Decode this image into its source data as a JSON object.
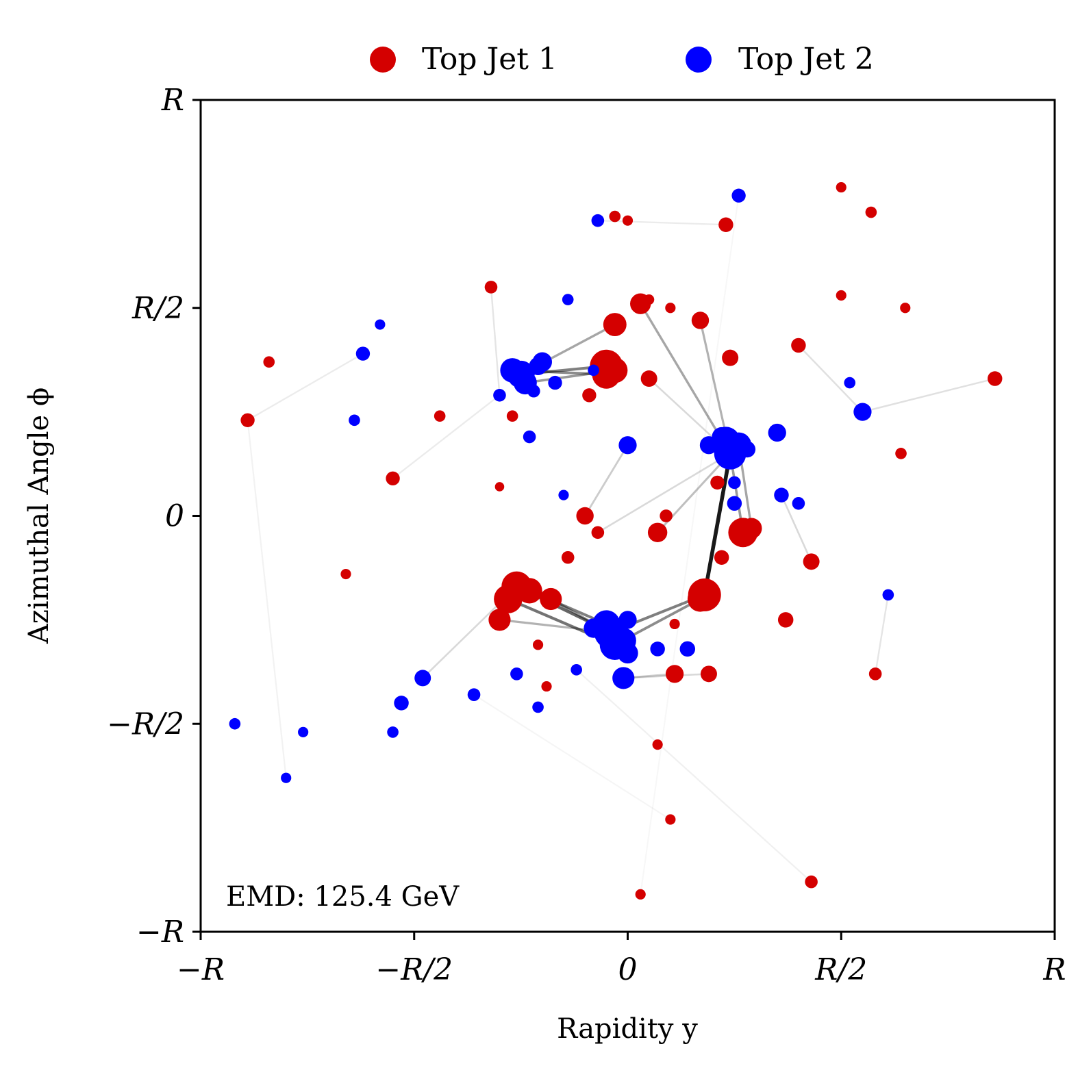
{
  "chart_data": {
    "type": "scatter",
    "xlabel": "Rapidity y",
    "ylabel": "Azimuthal Angle ϕ",
    "x_ticks": [
      "−R",
      "−R/2",
      "0",
      "R/2",
      "R"
    ],
    "y_ticks": [
      "−R",
      "−R/2",
      "0",
      "R/2",
      "R"
    ],
    "xlim": [
      -1,
      1
    ],
    "ylim": [
      -1,
      1
    ],
    "legend_position": "top-center",
    "annotation": "EMD: 125.4 GeV",
    "series": [
      {
        "name": "Top Jet 1",
        "color": "#d40000",
        "points": [
          [
            -0.05,
            0.36,
            1.0
          ],
          [
            -0.05,
            0.34,
            0.75
          ],
          [
            -0.03,
            0.35,
            0.6
          ],
          [
            0.18,
            -0.19,
            1.0
          ],
          [
            0.17,
            -0.2,
            0.6
          ],
          [
            0.27,
            -0.04,
            0.8
          ],
          [
            0.29,
            -0.03,
            0.4
          ],
          [
            -0.26,
            -0.17,
            0.85
          ],
          [
            -0.28,
            -0.2,
            0.75
          ],
          [
            -0.23,
            -0.18,
            0.6
          ],
          [
            -0.18,
            -0.2,
            0.45
          ],
          [
            -0.3,
            -0.25,
            0.45
          ],
          [
            -0.03,
            0.46,
            0.5
          ],
          [
            0.03,
            0.51,
            0.4
          ],
          [
            0.17,
            0.47,
            0.28
          ],
          [
            0.05,
            0.33,
            0.25
          ],
          [
            0.07,
            -0.04,
            0.35
          ],
          [
            0.11,
            -0.38,
            0.3
          ],
          [
            0.19,
            -0.38,
            0.25
          ],
          [
            0.24,
            0.38,
            0.25
          ],
          [
            0.21,
            0.08,
            0.18
          ],
          [
            0.22,
            -0.1,
            0.2
          ],
          [
            -0.09,
            0.29,
            0.18
          ],
          [
            -0.1,
            0.0,
            0.28
          ],
          [
            -0.07,
            -0.04,
            0.15
          ],
          [
            -0.14,
            -0.1,
            0.15
          ],
          [
            0.09,
            0.0,
            0.15
          ],
          [
            0.43,
            -0.11,
            0.25
          ],
          [
            0.4,
            0.41,
            0.2
          ],
          [
            0.23,
            0.7,
            0.2
          ],
          [
            0.86,
            0.33,
            0.2
          ],
          [
            -0.32,
            0.55,
            0.15
          ],
          [
            -0.27,
            0.24,
            0.12
          ],
          [
            -0.44,
            0.24,
            0.12
          ],
          [
            -0.55,
            0.09,
            0.18
          ],
          [
            -0.89,
            0.23,
            0.18
          ],
          [
            -0.84,
            0.37,
            0.12
          ],
          [
            0.37,
            -0.25,
            0.22
          ],
          [
            0.58,
            -0.38,
            0.15
          ],
          [
            0.57,
            0.73,
            0.12
          ],
          [
            0.64,
            0.15,
            0.12
          ],
          [
            0.05,
            0.52,
            0.1
          ],
          [
            -0.03,
            0.72,
            0.12
          ],
          [
            0.0,
            0.71,
            0.1
          ],
          [
            0.11,
            -0.26,
            0.1
          ],
          [
            0.1,
            -0.73,
            0.1
          ],
          [
            0.03,
            -0.91,
            0.1
          ],
          [
            0.43,
            -0.88,
            0.15
          ],
          [
            0.5,
            0.53,
            0.1
          ],
          [
            0.65,
            0.5,
            0.1
          ],
          [
            0.5,
            0.79,
            0.1
          ],
          [
            -0.3,
            0.07,
            0.08
          ],
          [
            -0.66,
            -0.14,
            0.1
          ],
          [
            0.1,
            0.5,
            0.1
          ],
          [
            0.07,
            -0.55,
            0.1
          ],
          [
            -0.21,
            -0.31,
            0.1
          ],
          [
            -0.19,
            -0.41,
            0.1
          ]
        ]
      },
      {
        "name": "Top Jet 2",
        "color": "#0000ff",
        "points": [
          [
            -0.25,
            0.34,
            0.7
          ],
          [
            -0.27,
            0.35,
            0.55
          ],
          [
            -0.24,
            0.32,
            0.5
          ],
          [
            -0.21,
            0.36,
            0.3
          ],
          [
            -0.17,
            0.32,
            0.18
          ],
          [
            -0.22,
            0.3,
            0.15
          ],
          [
            0.24,
            0.15,
            0.95
          ],
          [
            0.23,
            0.18,
            0.75
          ],
          [
            0.26,
            0.17,
            0.6
          ],
          [
            0.19,
            0.17,
            0.3
          ],
          [
            0.22,
            0.19,
            0.35
          ],
          [
            0.28,
            0.16,
            0.25
          ],
          [
            -0.04,
            -0.28,
            1.0
          ],
          [
            -0.03,
            -0.31,
            0.85
          ],
          [
            -0.05,
            -0.26,
            0.7
          ],
          [
            -0.01,
            -0.3,
            0.6
          ],
          [
            0.0,
            -0.33,
            0.4
          ],
          [
            -0.08,
            -0.27,
            0.35
          ],
          [
            0.0,
            -0.25,
            0.3
          ],
          [
            -0.01,
            -0.39,
            0.45
          ],
          [
            0.0,
            0.17,
            0.3
          ],
          [
            0.35,
            0.2,
            0.3
          ],
          [
            0.25,
            0.03,
            0.2
          ],
          [
            0.25,
            0.08,
            0.15
          ],
          [
            -0.2,
            0.37,
            0.35
          ],
          [
            0.55,
            0.25,
            0.3
          ],
          [
            0.36,
            0.05,
            0.2
          ],
          [
            0.07,
            -0.32,
            0.2
          ],
          [
            0.14,
            -0.32,
            0.22
          ],
          [
            -0.48,
            -0.39,
            0.25
          ],
          [
            -0.53,
            -0.45,
            0.2
          ],
          [
            -0.23,
            0.19,
            0.15
          ],
          [
            -0.62,
            0.39,
            0.18
          ],
          [
            -0.14,
            0.52,
            0.12
          ],
          [
            0.26,
            0.77,
            0.18
          ],
          [
            -0.07,
            0.71,
            0.15
          ],
          [
            -0.3,
            0.29,
            0.15
          ],
          [
            -0.64,
            0.23,
            0.12
          ],
          [
            -0.36,
            -0.43,
            0.15
          ],
          [
            -0.26,
            -0.38,
            0.15
          ],
          [
            -0.21,
            -0.46,
            0.12
          ],
          [
            -0.12,
            -0.37,
            0.12
          ],
          [
            -0.08,
            0.35,
            0.12
          ],
          [
            0.4,
            0.03,
            0.15
          ],
          [
            0.52,
            0.32,
            0.12
          ],
          [
            0.61,
            -0.19,
            0.12
          ],
          [
            -0.58,
            0.46,
            0.1
          ],
          [
            -0.3,
            0.29,
            0.1
          ],
          [
            -0.15,
            0.05,
            0.1
          ],
          [
            -0.55,
            -0.52,
            0.12
          ],
          [
            -0.92,
            -0.5,
            0.12
          ],
          [
            -0.76,
            -0.52,
            0.1
          ],
          [
            -0.8,
            -0.63,
            0.1
          ]
        ]
      }
    ],
    "flow_lines": [
      [
        -0.05,
        0.36,
        -0.25,
        0.34,
        0.5
      ],
      [
        -0.05,
        0.34,
        -0.27,
        0.35,
        0.45
      ],
      [
        -0.03,
        0.35,
        -0.24,
        0.32,
        0.4
      ],
      [
        0.18,
        -0.19,
        -0.04,
        -0.28,
        0.5
      ],
      [
        0.17,
        -0.2,
        -0.03,
        -0.31,
        0.45
      ],
      [
        0.18,
        -0.19,
        0.24,
        0.15,
        0.9
      ],
      [
        0.27,
        -0.04,
        0.24,
        0.15,
        0.4
      ],
      [
        0.29,
        -0.03,
        0.26,
        0.17,
        0.35
      ],
      [
        -0.26,
        -0.17,
        -0.04,
        -0.28,
        0.6
      ],
      [
        -0.28,
        -0.2,
        -0.03,
        -0.31,
        0.55
      ],
      [
        -0.23,
        -0.18,
        -0.05,
        -0.26,
        0.5
      ],
      [
        -0.18,
        -0.2,
        -0.01,
        -0.3,
        0.4
      ],
      [
        -0.3,
        -0.25,
        -0.04,
        -0.28,
        0.3
      ],
      [
        -0.03,
        0.46,
        -0.25,
        0.34,
        0.35
      ],
      [
        0.03,
        0.51,
        0.24,
        0.15,
        0.35
      ],
      [
        0.17,
        0.47,
        0.24,
        0.15,
        0.3
      ],
      [
        0.07,
        -0.04,
        0.24,
        0.15,
        0.25
      ],
      [
        0.11,
        -0.38,
        -0.01,
        -0.39,
        0.2
      ],
      [
        -0.1,
        0.0,
        0.0,
        0.17,
        0.2
      ],
      [
        0.4,
        0.41,
        0.55,
        0.25,
        0.12
      ],
      [
        0.86,
        0.33,
        0.55,
        0.25,
        0.12
      ],
      [
        -0.32,
        0.55,
        -0.3,
        0.29,
        0.1
      ],
      [
        -0.55,
        0.09,
        -0.3,
        0.29,
        0.08
      ],
      [
        -0.89,
        0.23,
        -0.62,
        0.39,
        0.08
      ],
      [
        0.43,
        -0.11,
        0.36,
        0.05,
        0.15
      ],
      [
        0.23,
        0.7,
        -0.07,
        0.71,
        0.08
      ],
      [
        0.58,
        -0.38,
        0.61,
        -0.19,
        0.1
      ],
      [
        -0.26,
        -0.17,
        -0.48,
        -0.39,
        0.15
      ],
      [
        -0.89,
        0.23,
        -0.8,
        -0.63,
        0.05
      ],
      [
        0.43,
        -0.88,
        -0.12,
        -0.37,
        0.06
      ],
      [
        0.19,
        -0.38,
        -0.01,
        -0.39,
        0.15
      ],
      [
        -0.07,
        -0.04,
        0.24,
        0.15,
        0.15
      ],
      [
        0.05,
        0.33,
        0.24,
        0.15,
        0.15
      ],
      [
        0.1,
        -0.73,
        -0.36,
        -0.43,
        0.04
      ],
      [
        0.03,
        -0.91,
        0.26,
        0.77,
        0.03
      ]
    ]
  },
  "legend": {
    "items": [
      {
        "label": "Top Jet 1",
        "color": "#d40000"
      },
      {
        "label": "Top Jet 2",
        "color": "#0000ff"
      }
    ]
  }
}
